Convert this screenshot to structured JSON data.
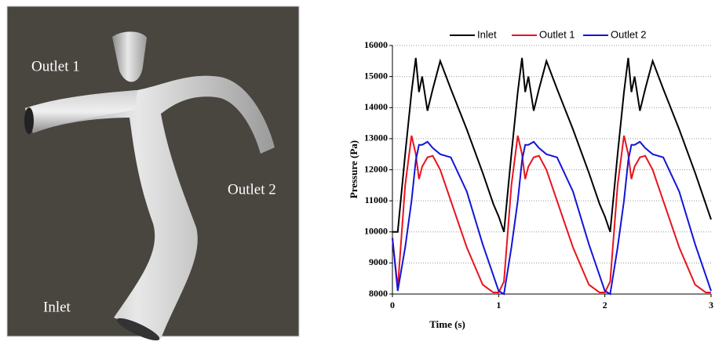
{
  "image": {
    "labels": [
      "Outlet 1",
      "Outlet 2",
      "Inlet"
    ]
  },
  "chart_data": {
    "type": "line",
    "xlabel": "Time (s)",
    "ylabel": "Pressure (Pa)",
    "x": [
      0,
      0.05,
      0.12,
      0.18,
      0.22,
      0.25,
      0.28,
      0.33,
      0.38,
      0.45,
      0.55,
      0.7,
      0.85,
      0.95,
      1,
      1.05,
      1.12,
      1.18,
      1.22,
      1.25,
      1.28,
      1.33,
      1.38,
      1.45,
      1.55,
      1.7,
      1.85,
      1.95,
      2,
      2.05,
      2.12,
      2.18,
      2.22,
      2.25,
      2.28,
      2.33,
      2.38,
      2.45,
      2.55,
      2.7,
      2.85,
      2.95,
      3
    ],
    "series": [
      {
        "name": "Inlet",
        "color": "#000000",
        "values": [
          10000,
          10000,
          12500,
          14500,
          15600,
          14500,
          15000,
          13900,
          14600,
          15500,
          14600,
          13300,
          11900,
          10900,
          10500,
          10000,
          12500,
          14500,
          15600,
          14500,
          15000,
          13900,
          14600,
          15500,
          14600,
          13300,
          11900,
          10900,
          10500,
          10000,
          12500,
          14500,
          15600,
          14500,
          15000,
          13900,
          14600,
          15500,
          14600,
          13300,
          11900,
          10900,
          10400
        ]
      },
      {
        "name": "Outlet 1",
        "color": "#e8141c",
        "values": [
          9800,
          8200,
          11500,
          13100,
          12500,
          11700,
          12100,
          12400,
          12450,
          12000,
          11000,
          9500,
          8300,
          8050,
          8050,
          8400,
          11500,
          13100,
          12500,
          11700,
          12100,
          12400,
          12450,
          12000,
          11000,
          9500,
          8300,
          8050,
          8050,
          8400,
          11500,
          13100,
          12500,
          11700,
          12100,
          12400,
          12450,
          12000,
          11000,
          9500,
          8300,
          8050,
          8050
        ]
      },
      {
        "name": "Outlet 2",
        "color": "#1414d8",
        "values": [
          9800,
          8100,
          9500,
          11000,
          12300,
          12800,
          12800,
          12900,
          12700,
          12500,
          12400,
          11300,
          9600,
          8600,
          8100,
          8000,
          9500,
          11000,
          12300,
          12800,
          12800,
          12900,
          12700,
          12500,
          12400,
          11300,
          9600,
          8600,
          8100,
          8000,
          9500,
          11000,
          12300,
          12800,
          12800,
          12900,
          12700,
          12500,
          12400,
          11300,
          9600,
          8600,
          8100
        ]
      }
    ],
    "xlim": [
      0,
      3
    ],
    "ylim": [
      8000,
      16000
    ],
    "xticks": [
      0,
      1,
      2,
      3
    ],
    "yticks": [
      8000,
      9000,
      10000,
      11000,
      12000,
      13000,
      14000,
      15000,
      16000
    ],
    "grid": true
  }
}
